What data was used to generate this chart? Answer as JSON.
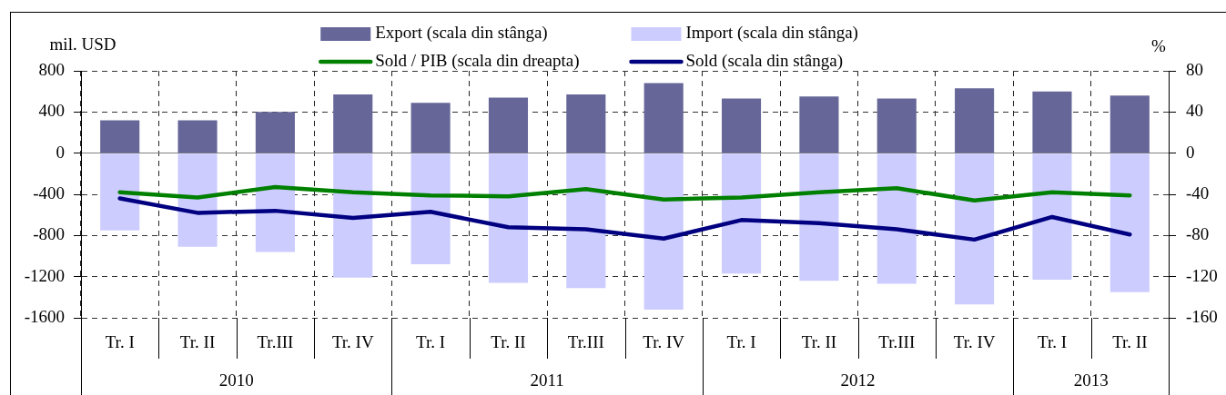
{
  "chart_data": {
    "type": "bar",
    "categories": [
      "Tr. I",
      "Tr. II",
      "Tr.III",
      "Tr. IV",
      "Tr. I",
      "Tr. II",
      "Tr.III",
      "Tr. IV",
      "Tr. I",
      "Tr. II",
      "Tr.III",
      "Tr. IV",
      "Tr. I",
      "Tr. II"
    ],
    "series": [
      {
        "name": "Export (scala din stânga)",
        "color": "#666699",
        "values": [
          320,
          320,
          400,
          570,
          490,
          540,
          570,
          680,
          530,
          550,
          530,
          630,
          600,
          560
        ]
      },
      {
        "name": "Import (scala din stânga)",
        "color": "#ccccff",
        "values": [
          -750,
          -910,
          -960,
          -1210,
          -1080,
          -1260,
          -1310,
          -1520,
          -1170,
          -1240,
          -1270,
          -1470,
          -1230,
          -1350
        ]
      },
      {
        "name": "Sold / PIB (scala din dreapta)",
        "type": "line",
        "axis": "y2",
        "color": "#008000",
        "values": [
          -38,
          -43,
          -33,
          -38,
          -41,
          -42,
          -35,
          -45,
          -43,
          -38,
          -34,
          -46,
          -38,
          -41
        ]
      },
      {
        "name": "Sold (scala din stânga)",
        "type": "line",
        "color": "#000080",
        "values": [
          -440,
          -580,
          -560,
          -630,
          -570,
          -720,
          -740,
          -830,
          -650,
          -680,
          -740,
          -840,
          -620,
          -790
        ]
      }
    ],
    "ylabel": "mil. USD",
    "y2label": "%",
    "ylim": [
      -1600,
      800
    ],
    "yticks": [
      -1600,
      -1200,
      -800,
      -400,
      0,
      400,
      800
    ],
    "y2lim": [
      -160,
      80
    ],
    "y2ticks": [
      -160,
      -120,
      -80,
      -40,
      0,
      40,
      80
    ],
    "stacked": true,
    "grid": true,
    "legend": "top",
    "annotations": [
      "2010",
      "2011",
      "2012",
      "2013"
    ]
  }
}
